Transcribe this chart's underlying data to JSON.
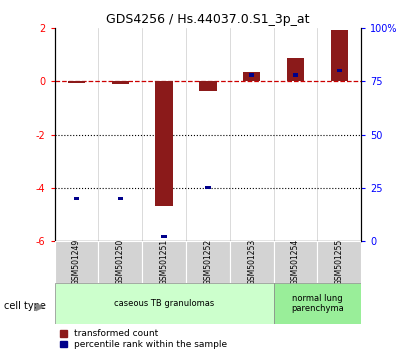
{
  "title": "GDS4256 / Hs.44037.0.S1_3p_at",
  "samples": [
    "GSM501249",
    "GSM501250",
    "GSM501251",
    "GSM501252",
    "GSM501253",
    "GSM501254",
    "GSM501255"
  ],
  "transformed_count": [
    -0.05,
    -0.1,
    -4.7,
    -0.35,
    0.35,
    0.9,
    1.95
  ],
  "percentile_rank_pct": [
    20,
    20,
    2,
    25,
    78,
    78,
    80
  ],
  "ylim_left": [
    -6,
    2
  ],
  "ylim_right": [
    0,
    100
  ],
  "yticks_left": [
    2,
    0,
    -2,
    -4,
    -6
  ],
  "yticks_right": [
    100,
    75,
    50,
    25,
    0
  ],
  "ytick_labels_right": [
    "100%",
    "75",
    "50",
    "25",
    "0"
  ],
  "cell_type_groups": [
    {
      "label": "caseous TB granulomas",
      "start": 0,
      "end": 5,
      "color": "#ccffcc"
    },
    {
      "label": "normal lung\nparenchyma",
      "start": 5,
      "end": 7,
      "color": "#99ee99"
    }
  ],
  "cell_type_label": "cell type",
  "legend_items": [
    {
      "color": "#8B1A1A",
      "label": "transformed count"
    },
    {
      "color": "#00008B",
      "label": "percentile rank within the sample"
    }
  ],
  "bar_color_red": "#8B1A1A",
  "bar_color_blue": "#00008B",
  "dashed_line_color": "#cc0000",
  "dotted_line_color": "#000000",
  "background_color": "#ffffff",
  "bar_width": 0.4,
  "blue_sq_size": 0.12
}
